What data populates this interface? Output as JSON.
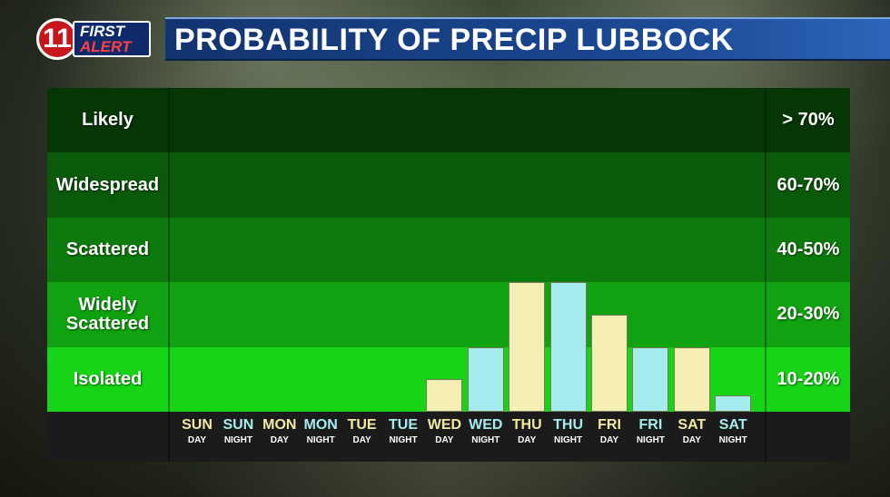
{
  "header": {
    "logo_line1": "FIRST",
    "logo_line2": "ALERT",
    "logo_number": "11",
    "title": "PROBABILITY OF PRECIP LUBBOCK"
  },
  "colors": {
    "day_bar": "#f6efb3",
    "night_bar": "#a6ecef",
    "day_text": "#f2e9a2",
    "night_text": "#a6ecef",
    "band_likely": "#053605",
    "band_widespread": "#0b590b",
    "band_scattered": "#0d7a0d",
    "band_widely_scattered": "#11a211",
    "band_isolated": "#17d417"
  },
  "chart_data": {
    "type": "bar",
    "title": "PROBABILITY OF PRECIP LUBBOCK",
    "categories": [
      {
        "top": "SUN",
        "bottom": "DAY",
        "period": "day"
      },
      {
        "top": "SUN",
        "bottom": "NIGHT",
        "period": "night"
      },
      {
        "top": "MON",
        "bottom": "DAY",
        "period": "day"
      },
      {
        "top": "MON",
        "bottom": "NIGHT",
        "period": "night"
      },
      {
        "top": "TUE",
        "bottom": "DAY",
        "period": "day"
      },
      {
        "top": "TUE",
        "bottom": "NIGHT",
        "period": "night"
      },
      {
        "top": "WED",
        "bottom": "DAY",
        "period": "day"
      },
      {
        "top": "WED",
        "bottom": "NIGHT",
        "period": "night"
      },
      {
        "top": "THU",
        "bottom": "DAY",
        "period": "day"
      },
      {
        "top": "THU",
        "bottom": "NIGHT",
        "period": "night"
      },
      {
        "top": "FRI",
        "bottom": "DAY",
        "period": "day"
      },
      {
        "top": "FRI",
        "bottom": "NIGHT",
        "period": "night"
      },
      {
        "top": "SAT",
        "bottom": "DAY",
        "period": "day"
      },
      {
        "top": "SAT",
        "bottom": "NIGHT",
        "period": "night"
      }
    ],
    "values": [
      0,
      0,
      0,
      0,
      0,
      0,
      0.5,
      1,
      2,
      2,
      1.5,
      1,
      1,
      0.25
    ],
    "ylim": [
      0,
      5
    ],
    "bands": [
      {
        "label": "Likely",
        "range": "> 70%"
      },
      {
        "label": "Widespread",
        "range": "60-70%"
      },
      {
        "label": "Scattered",
        "range": "40-50%"
      },
      {
        "label": "Widely Scattered",
        "range": "20-30%"
      },
      {
        "label": "Isolated",
        "range": "10-20%"
      }
    ]
  }
}
